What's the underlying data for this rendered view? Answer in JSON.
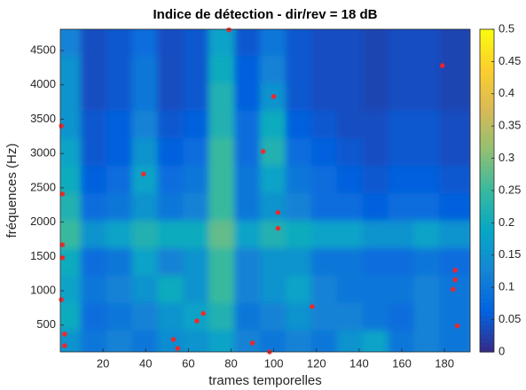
{
  "chart_data": {
    "type": "heatmap",
    "title": "Indice de détection - dir/rev = 18 dB",
    "xlabel": "trames temporelles",
    "ylabel": "fréquences (Hz)",
    "xlim": [
      0,
      192
    ],
    "ylim": [
      110,
      4810
    ],
    "xticks": [
      20,
      40,
      60,
      80,
      100,
      120,
      140,
      160,
      180
    ],
    "yticks": [
      500,
      1000,
      1500,
      2000,
      2500,
      3000,
      3500,
      4000,
      4500
    ],
    "clim": [
      0,
      0.5
    ],
    "cticks": [
      0,
      0.05,
      0.1,
      0.15,
      0.2,
      0.25,
      0.3,
      0.35,
      0.4,
      0.45,
      0.5
    ],
    "x": [
      6,
      18,
      30,
      42,
      54,
      66,
      78,
      90,
      102,
      114,
      126,
      138,
      150,
      162,
      174,
      186
    ],
    "y": [
      300,
      700,
      1100,
      1500,
      1900,
      2300,
      2700,
      3100,
      3500,
      3900,
      4300,
      4700
    ],
    "z": [
      [
        0.15,
        0.1,
        0.12,
        0.1,
        0.14,
        0.15,
        0.18,
        0.12,
        0.1,
        0.12,
        0.1,
        0.15,
        0.18,
        0.1,
        0.12,
        0.1
      ],
      [
        0.2,
        0.08,
        0.1,
        0.12,
        0.15,
        0.18,
        0.22,
        0.1,
        0.12,
        0.15,
        0.12,
        0.12,
        0.1,
        0.08,
        0.12,
        0.1
      ],
      [
        0.18,
        0.1,
        0.12,
        0.15,
        0.2,
        0.15,
        0.25,
        0.12,
        0.15,
        0.18,
        0.12,
        0.1,
        0.1,
        0.1,
        0.12,
        0.1
      ],
      [
        0.2,
        0.08,
        0.1,
        0.18,
        0.12,
        0.15,
        0.25,
        0.12,
        0.15,
        0.15,
        0.1,
        0.1,
        0.08,
        0.08,
        0.1,
        0.08
      ],
      [
        0.25,
        0.15,
        0.18,
        0.22,
        0.2,
        0.2,
        0.28,
        0.18,
        0.22,
        0.2,
        0.18,
        0.18,
        0.15,
        0.15,
        0.18,
        0.15
      ],
      [
        0.22,
        0.08,
        0.1,
        0.15,
        0.1,
        0.12,
        0.25,
        0.1,
        0.15,
        0.12,
        0.08,
        0.08,
        0.06,
        0.08,
        0.08,
        0.06
      ],
      [
        0.2,
        0.06,
        0.08,
        0.18,
        0.08,
        0.1,
        0.25,
        0.1,
        0.18,
        0.1,
        0.08,
        0.06,
        0.05,
        0.06,
        0.06,
        0.05
      ],
      [
        0.18,
        0.05,
        0.06,
        0.15,
        0.06,
        0.08,
        0.25,
        0.08,
        0.22,
        0.08,
        0.06,
        0.05,
        0.04,
        0.05,
        0.05,
        0.04
      ],
      [
        0.15,
        0.05,
        0.06,
        0.12,
        0.05,
        0.06,
        0.22,
        0.08,
        0.2,
        0.06,
        0.05,
        0.04,
        0.04,
        0.05,
        0.05,
        0.04
      ],
      [
        0.15,
        0.04,
        0.05,
        0.1,
        0.04,
        0.05,
        0.22,
        0.06,
        0.15,
        0.05,
        0.04,
        0.04,
        0.03,
        0.04,
        0.04,
        0.03
      ],
      [
        0.15,
        0.04,
        0.05,
        0.1,
        0.04,
        0.05,
        0.2,
        0.06,
        0.12,
        0.05,
        0.04,
        0.04,
        0.03,
        0.04,
        0.04,
        0.03
      ],
      [
        0.12,
        0.04,
        0.05,
        0.08,
        0.04,
        0.05,
        0.18,
        0.05,
        0.1,
        0.05,
        0.04,
        0.04,
        0.03,
        0.04,
        0.04,
        0.03
      ]
    ],
    "markers": {
      "color": "#ff2020",
      "x": [
        0.5,
        1,
        1,
        1,
        0.5,
        2,
        2,
        39,
        79,
        95,
        100,
        102,
        102,
        118,
        53,
        55,
        64,
        67,
        90,
        98,
        179,
        185,
        185,
        184,
        186
      ],
      "y": [
        3400,
        2410,
        1670,
        1480,
        870,
        370,
        200,
        2700,
        4800,
        3030,
        3830,
        2140,
        1910,
        770,
        290,
        160,
        560,
        670,
        240,
        110,
        4280,
        1300,
        1160,
        1020,
        490
      ]
    }
  }
}
